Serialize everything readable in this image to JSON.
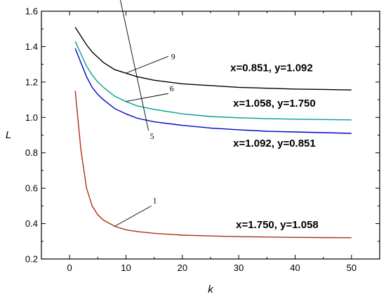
{
  "chart_data": {
    "type": "line",
    "xlabel": "k",
    "ylabel": "L",
    "xlim": [
      -5,
      55
    ],
    "ylim": [
      0.2,
      1.6
    ],
    "x_ticks": [
      0,
      10,
      20,
      30,
      40,
      50
    ],
    "y_ticks": [
      0.2,
      0.4,
      0.6,
      0.8,
      1.0,
      1.2,
      1.4,
      1.6
    ],
    "x_tick_labels": [
      "0",
      "10",
      "20",
      "30",
      "40",
      "50"
    ],
    "y_tick_labels": [
      "0.2",
      "0.4",
      "0.6",
      "0.8",
      "1.0",
      "1.2",
      "1.4",
      "1.6"
    ],
    "grid": false,
    "series": [
      {
        "label": "9",
        "color": "#000000",
        "annotation": "x=0.851, y=1.092",
        "x": [
          1,
          2,
          3,
          4,
          5,
          6,
          8,
          10,
          12,
          15,
          20,
          25,
          30,
          35,
          40,
          45,
          50
        ],
        "y": [
          1.51,
          1.46,
          1.41,
          1.37,
          1.34,
          1.31,
          1.27,
          1.25,
          1.23,
          1.21,
          1.19,
          1.18,
          1.17,
          1.165,
          1.16,
          1.158,
          1.155
        ]
      },
      {
        "label": "6",
        "color": "#009e8e",
        "annotation": "x=1.058, y=1.750",
        "x": [
          1,
          2,
          3,
          4,
          5,
          6,
          8,
          10,
          12,
          15,
          20,
          25,
          30,
          35,
          40,
          45,
          50
        ],
        "y": [
          1.43,
          1.36,
          1.29,
          1.24,
          1.2,
          1.17,
          1.12,
          1.09,
          1.065,
          1.045,
          1.02,
          1.005,
          0.998,
          0.993,
          0.99,
          0.988,
          0.986
        ]
      },
      {
        "label": "5",
        "color": "#0000cc",
        "annotation": "x=1.092, y=0.851",
        "x": [
          1,
          2,
          3,
          4,
          5,
          6,
          8,
          10,
          12,
          15,
          20,
          25,
          30,
          35,
          40,
          45,
          50
        ],
        "y": [
          1.39,
          1.31,
          1.23,
          1.17,
          1.13,
          1.1,
          1.05,
          1.02,
          0.995,
          0.975,
          0.955,
          0.94,
          0.93,
          0.922,
          0.918,
          0.914,
          0.91
        ]
      },
      {
        "label": "1",
        "color": "#b03010",
        "annotation": "x=1.750, y=1.058",
        "x": [
          1,
          2,
          3,
          4,
          5,
          6,
          8,
          10,
          12,
          15,
          20,
          25,
          30,
          35,
          40,
          45,
          50
        ],
        "y": [
          1.15,
          0.82,
          0.6,
          0.5,
          0.45,
          0.42,
          0.385,
          0.365,
          0.355,
          0.345,
          0.335,
          0.33,
          0.326,
          0.324,
          0.322,
          0.321,
          0.32
        ]
      }
    ]
  }
}
